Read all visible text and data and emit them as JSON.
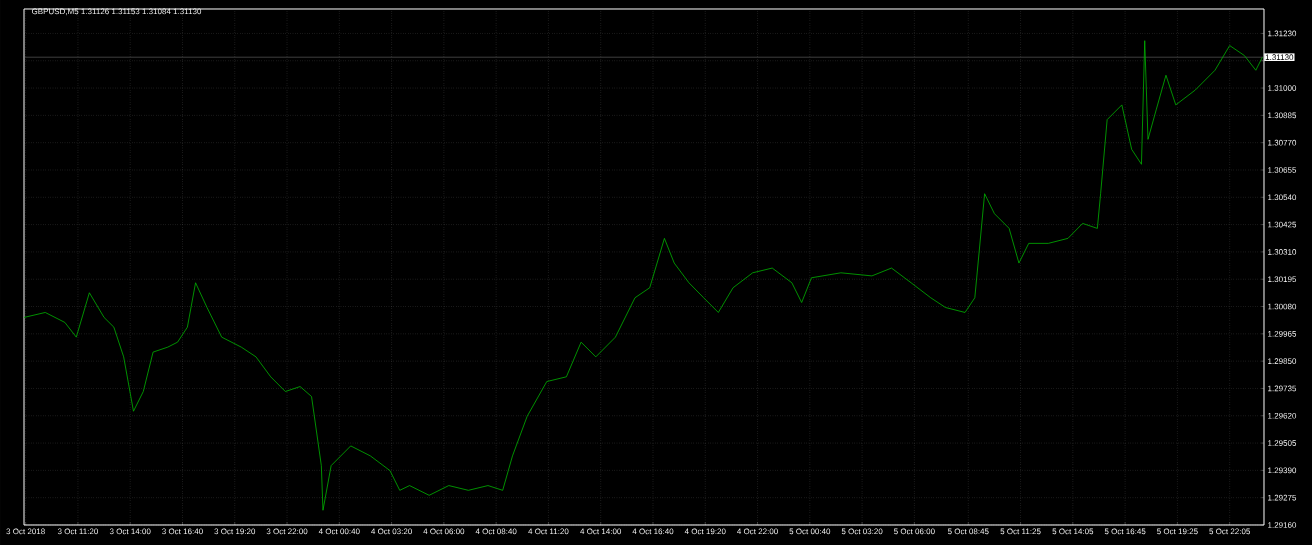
{
  "chart_data": {
    "type": "line",
    "title": "GBPUSD,M5 1.31126 1.31153 1.31084 1.31130",
    "grid": true,
    "marker": "none",
    "line_style": "solid",
    "xlim": [
      "2018-10-03T08:35",
      "2018-10-05T23:50"
    ],
    "ylim": [
      1.2916,
      1.31333
    ],
    "xticks": [
      {
        "value": "2018-10-03T08:40",
        "label": "3 Oct 2018"
      },
      {
        "value": "2018-10-03T11:20",
        "label": "3 Oct 11:20"
      },
      {
        "value": "2018-10-03T14:00",
        "label": "3 Oct 14:00"
      },
      {
        "value": "2018-10-03T16:40",
        "label": "3 Oct 16:40"
      },
      {
        "value": "2018-10-03T19:20",
        "label": "3 Oct 19:20"
      },
      {
        "value": "2018-10-03T22:00",
        "label": "3 Oct 22:00"
      },
      {
        "value": "2018-10-04T00:40",
        "label": "4 Oct 00:40"
      },
      {
        "value": "2018-10-04T03:20",
        "label": "4 Oct 03:20"
      },
      {
        "value": "2018-10-04T06:00",
        "label": "4 Oct 06:00"
      },
      {
        "value": "2018-10-04T08:40",
        "label": "4 Oct 08:40"
      },
      {
        "value": "2018-10-04T11:20",
        "label": "4 Oct 11:20"
      },
      {
        "value": "2018-10-04T14:00",
        "label": "4 Oct 14:00"
      },
      {
        "value": "2018-10-04T16:40",
        "label": "4 Oct 16:40"
      },
      {
        "value": "2018-10-04T19:20",
        "label": "4 Oct 19:20"
      },
      {
        "value": "2018-10-04T22:00",
        "label": "4 Oct 22:00"
      },
      {
        "value": "2018-10-05T00:40",
        "label": "5 Oct 00:40"
      },
      {
        "value": "2018-10-05T03:20",
        "label": "5 Oct 03:20"
      },
      {
        "value": "2018-10-05T06:00",
        "label": "5 Oct 06:00"
      },
      {
        "value": "2018-10-05T08:45",
        "label": "5 Oct 08:45"
      },
      {
        "value": "2018-10-05T11:25",
        "label": "5 Oct 11:25"
      },
      {
        "value": "2018-10-05T14:05",
        "label": "5 Oct 14:05"
      },
      {
        "value": "2018-10-05T16:45",
        "label": "5 Oct 16:45"
      },
      {
        "value": "2018-10-05T19:25",
        "label": "5 Oct 19:25"
      },
      {
        "value": "2018-10-05T22:05",
        "label": "5 Oct 22:05"
      }
    ],
    "yticks": [
      {
        "value": 1.2916,
        "label": "1.29160"
      },
      {
        "value": 1.29275,
        "label": "1.29275"
      },
      {
        "value": 1.2939,
        "label": "1.29390"
      },
      {
        "value": 1.29505,
        "label": "1.29505"
      },
      {
        "value": 1.2962,
        "label": "1.29620"
      },
      {
        "value": 1.29735,
        "label": "1.29735"
      },
      {
        "value": 1.2985,
        "label": "1.29850"
      },
      {
        "value": 1.29965,
        "label": "1.29965"
      },
      {
        "value": 1.3008,
        "label": "1.30080"
      },
      {
        "value": 1.30195,
        "label": "1.30195"
      },
      {
        "value": 1.3031,
        "label": "1.30310"
      },
      {
        "value": 1.30425,
        "label": "1.30425"
      },
      {
        "value": 1.3054,
        "label": "1.30540"
      },
      {
        "value": 1.30655,
        "label": "1.30655"
      },
      {
        "value": 1.3077,
        "label": "1.30770"
      },
      {
        "value": 1.30885,
        "label": "1.30885"
      },
      {
        "value": 1.31,
        "label": "1.31000"
      },
      {
        "value": 1.31115,
        "label": null
      },
      {
        "value": 1.3123,
        "label": "1.31230"
      }
    ],
    "ref_lines": [
      {
        "axis": "y",
        "value": 1.3113,
        "label": "1.31130",
        "color": "#808080"
      }
    ],
    "x": [
      "2018-10-03T08:35",
      "2018-10-03T09:40",
      "2018-10-03T10:40",
      "2018-10-03T11:15",
      "2018-10-03T11:55",
      "2018-10-03T12:40",
      "2018-10-03T13:10",
      "2018-10-03T13:40",
      "2018-10-03T14:10",
      "2018-10-03T14:40",
      "2018-10-03T15:10",
      "2018-10-03T15:55",
      "2018-10-03T16:25",
      "2018-10-03T16:55",
      "2018-10-03T17:20",
      "2018-10-03T17:55",
      "2018-10-03T18:40",
      "2018-10-03T19:40",
      "2018-10-03T20:25",
      "2018-10-03T21:10",
      "2018-10-03T21:55",
      "2018-10-03T22:40",
      "2018-10-03T23:15",
      "2018-10-03T23:45",
      "2018-10-03T23:50",
      "2018-10-04T00:15",
      "2018-10-04T01:15",
      "2018-10-04T02:15",
      "2018-10-04T03:15",
      "2018-10-04T03:45",
      "2018-10-04T04:15",
      "2018-10-04T05:15",
      "2018-10-04T06:15",
      "2018-10-04T07:15",
      "2018-10-04T08:15",
      "2018-10-04T09:00",
      "2018-10-04T09:30",
      "2018-10-04T10:15",
      "2018-10-04T11:15",
      "2018-10-04T12:15",
      "2018-10-04T13:00",
      "2018-10-04T13:45",
      "2018-10-04T14:45",
      "2018-10-04T15:45",
      "2018-10-04T16:30",
      "2018-10-04T17:15",
      "2018-10-04T17:45",
      "2018-10-04T18:30",
      "2018-10-04T19:15",
      "2018-10-04T20:00",
      "2018-10-04T20:45",
      "2018-10-04T21:45",
      "2018-10-04T22:45",
      "2018-10-04T23:45",
      "2018-10-05T00:15",
      "2018-10-05T00:45",
      "2018-10-05T02:15",
      "2018-10-05T03:50",
      "2018-10-05T04:50",
      "2018-10-05T05:50",
      "2018-10-05T06:50",
      "2018-10-05T07:35",
      "2018-10-05T08:35",
      "2018-10-05T09:05",
      "2018-10-05T09:35",
      "2018-10-05T10:05",
      "2018-10-05T10:50",
      "2018-10-05T11:20",
      "2018-10-05T11:50",
      "2018-10-05T12:50",
      "2018-10-05T13:50",
      "2018-10-05T14:35",
      "2018-10-05T15:20",
      "2018-10-05T15:30",
      "2018-10-05T15:50",
      "2018-10-05T16:35",
      "2018-10-05T17:05",
      "2018-10-05T17:35",
      "2018-10-05T17:45",
      "2018-10-05T17:55",
      "2018-10-05T18:20",
      "2018-10-05T18:50",
      "2018-10-05T19:20",
      "2018-10-05T20:20",
      "2018-10-05T21:20",
      "2018-10-05T22:05",
      "2018-10-05T22:50",
      "2018-10-05T23:25",
      "2018-10-05T23:45"
    ],
    "series": [
      {
        "color": "#00b400",
        "values": [
          1.30034,
          1.30055,
          1.30013,
          1.29951,
          1.30138,
          1.30034,
          1.29993,
          1.29868,
          1.29639,
          1.29722,
          1.29888,
          1.29909,
          1.2993,
          1.29993,
          1.3018,
          1.30076,
          1.29951,
          1.29909,
          1.29868,
          1.29784,
          1.29722,
          1.29743,
          1.29701,
          1.2941,
          1.29222,
          1.2941,
          1.29493,
          1.29451,
          1.29389,
          1.29306,
          1.29326,
          1.29285,
          1.29326,
          1.29306,
          1.29326,
          1.29306,
          1.29451,
          1.29618,
          1.29764,
          1.29784,
          1.2993,
          1.29868,
          1.29951,
          1.30117,
          1.30159,
          1.30367,
          1.30263,
          1.3018,
          1.30117,
          1.30055,
          1.30159,
          1.30222,
          1.30242,
          1.3018,
          1.30097,
          1.30201,
          1.30222,
          1.30209,
          1.30242,
          1.3018,
          1.30117,
          1.30076,
          1.30055,
          1.30117,
          1.30555,
          1.30471,
          1.30409,
          1.30263,
          1.30346,
          1.30346,
          1.30367,
          1.3043,
          1.30409,
          1.30555,
          1.30867,
          1.30929,
          1.30742,
          1.30679,
          1.312,
          1.30784,
          1.30908,
          1.31054,
          1.30929,
          1.30992,
          1.31075,
          1.31179,
          1.31137,
          1.31075,
          1.3113
        ]
      }
    ]
  }
}
